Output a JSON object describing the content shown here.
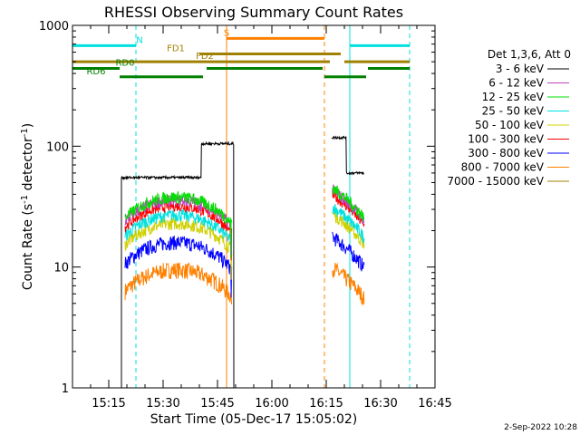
{
  "chart_data": {
    "type": "line",
    "title": "RHESSI Observing Summary Count Rates",
    "xlabel": "Start Time (05-Dec-17 15:05:02)",
    "ylabel": "Count Rate (s",
    "ylabel_sup1": "-1",
    "ylabel_mid": " detector",
    "ylabel_sup2": "-1",
    "ylabel_end": ")",
    "y_scale": "log",
    "ylim": [
      1,
      1000
    ],
    "xlim_minutes": [
      0,
      100
    ],
    "x_ticks": [
      {
        "m": 10,
        "label": "15:15"
      },
      {
        "m": 25,
        "label": "15:30"
      },
      {
        "m": 40,
        "label": "15:45"
      },
      {
        "m": 55,
        "label": "16:00"
      },
      {
        "m": 70,
        "label": "16:15"
      },
      {
        "m": 85,
        "label": "16:30"
      },
      {
        "m": 100,
        "label": "16:45"
      }
    ],
    "y_ticks": [
      {
        "v": 1,
        "label": "1"
      },
      {
        "v": 10,
        "label": "10"
      },
      {
        "v": 100,
        "label": "100"
      },
      {
        "v": 1000,
        "label": "1000"
      }
    ],
    "legend_header": "Det 1,3,6, Att 0",
    "legend_placement": "right",
    "series": [
      {
        "name": "3 - 6 keV",
        "color": "#000000",
        "level": 55,
        "jump": 105,
        "p2": 60,
        "noise": 0.05
      },
      {
        "name": "6 - 12 keV",
        "color": "#c040c0",
        "level": 36,
        "p2": 44,
        "noise": 0.12
      },
      {
        "name": "12 - 25 keV",
        "color": "#00e000",
        "level": 38,
        "p2": 46,
        "noise": 0.12
      },
      {
        "name": "25 - 50 keV",
        "color": "#00e0e0",
        "level": 27,
        "p2": 32,
        "noise": 0.12
      },
      {
        "name": "50 - 100 keV",
        "color": "#d0d000",
        "level": 23,
        "p2": 28,
        "noise": 0.12
      },
      {
        "name": "100 - 300 keV",
        "color": "#ff0000",
        "level": 32,
        "p2": 40,
        "noise": 0.1
      },
      {
        "name": "300 - 800 keV",
        "color": "#0000ff",
        "level": 16,
        "p2": 18,
        "noise": 0.14
      },
      {
        "name": "800 - 7000 keV",
        "color": "#ff8000",
        "level": 9.5,
        "p2": 10,
        "noise": 0.16
      },
      {
        "name": "7000 - 15000 keV",
        "color": "#a08000",
        "level": null
      }
    ],
    "segments": [
      {
        "label": "S",
        "color": "#ff8000",
        "m1": 42.5,
        "m2": 69.5,
        "v": 780,
        "label_m": 42.5
      },
      {
        "label": "N",
        "color": "#00e0e0",
        "m1": 0,
        "m2": 17.5,
        "v": 680,
        "label_m": 18.5
      },
      {
        "label": "N",
        "color": "#00e0e0",
        "m1": 76.5,
        "m2": 93,
        "v": 680,
        "label_m": null
      },
      {
        "label": "FD1",
        "color": "#a08000",
        "m1": 35,
        "m2": 74,
        "v": 580,
        "label_m": 28.5
      },
      {
        "label": "FD2",
        "color": "#a08000",
        "m1": 0,
        "m2": 71,
        "v": 500,
        "label_m": 36.5
      },
      {
        "label": "FD2",
        "color": "#a08000",
        "m1": 75,
        "m2": 93,
        "v": 500,
        "label_m": null
      },
      {
        "label": "RD0",
        "color": "#008000",
        "m1": 0,
        "m2": 13,
        "v": 440,
        "label_m": 14.5
      },
      {
        "label": "RD0",
        "color": "#008000",
        "m1": 37,
        "m2": 69,
        "v": 440,
        "label_m": null
      },
      {
        "label": "RD0",
        "color": "#008000",
        "m1": 81.5,
        "m2": 93,
        "v": 440,
        "label_m": null
      },
      {
        "label": "RD6",
        "color": "#008000",
        "m1": 13,
        "m2": 36,
        "v": 375,
        "label_m": 6.5
      },
      {
        "label": "RD6",
        "color": "#008000",
        "m1": 69.5,
        "m2": 81,
        "v": 375,
        "label_m": null
      }
    ],
    "vlines": [
      {
        "m": 0,
        "color": "#00e0e0",
        "style": "solid"
      },
      {
        "m": 17.5,
        "color": "#00e0e0",
        "style": "dashed"
      },
      {
        "m": 42.5,
        "color": "#ff8000",
        "style": "solid"
      },
      {
        "m": 69.5,
        "color": "#ff8000",
        "style": "dashed"
      },
      {
        "m": 76.5,
        "color": "#00e0e0",
        "style": "solid"
      },
      {
        "m": 93,
        "color": "#00e0e0",
        "style": "dashed"
      }
    ],
    "intervals": [
      [
        13.5,
        44.5
      ],
      [
        71.5,
        80.5
      ]
    ],
    "black_jump": [
      35.5,
      44.5
    ],
    "black_jump2": [
      71.5,
      75.5
    ]
  },
  "timestamp": "2-Sep-2022 10:28"
}
